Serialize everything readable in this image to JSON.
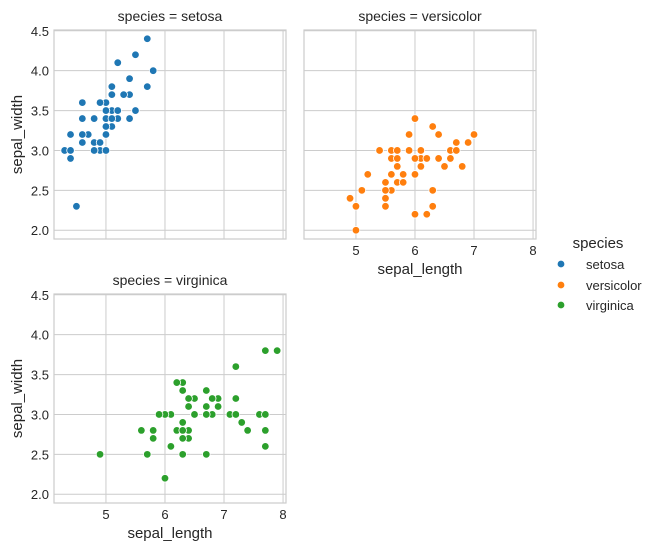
{
  "chart_data": {
    "type": "scatter",
    "xlabel": "sepal_length",
    "ylabel": "sepal_width",
    "xlim": [
      4.12,
      8.05
    ],
    "ylim": [
      1.89,
      4.51
    ],
    "xticks": [
      "5",
      "6",
      "7",
      "8"
    ],
    "yticks": [
      "2.0",
      "2.5",
      "3.0",
      "3.5",
      "4.0",
      "4.5"
    ],
    "legend": {
      "title": "species",
      "placement": "right"
    },
    "grid": true,
    "panels": [
      {
        "title": "species = setosa",
        "name": "setosa",
        "color": "#1f77b4",
        "points": [
          [
            5.1,
            3.5
          ],
          [
            4.9,
            3.0
          ],
          [
            4.7,
            3.2
          ],
          [
            4.6,
            3.1
          ],
          [
            5.0,
            3.6
          ],
          [
            5.4,
            3.9
          ],
          [
            4.6,
            3.4
          ],
          [
            5.0,
            3.4
          ],
          [
            4.4,
            2.9
          ],
          [
            4.9,
            3.1
          ],
          [
            5.4,
            3.7
          ],
          [
            4.8,
            3.4
          ],
          [
            4.8,
            3.0
          ],
          [
            4.3,
            3.0
          ],
          [
            5.8,
            4.0
          ],
          [
            5.7,
            4.4
          ],
          [
            5.4,
            3.9
          ],
          [
            5.1,
            3.5
          ],
          [
            5.7,
            3.8
          ],
          [
            5.1,
            3.8
          ],
          [
            5.4,
            3.4
          ],
          [
            5.1,
            3.7
          ],
          [
            4.6,
            3.6
          ],
          [
            5.1,
            3.3
          ],
          [
            4.8,
            3.4
          ],
          [
            5.0,
            3.0
          ],
          [
            5.0,
            3.4
          ],
          [
            5.2,
            3.5
          ],
          [
            5.2,
            3.4
          ],
          [
            4.7,
            3.2
          ],
          [
            4.8,
            3.1
          ],
          [
            5.4,
            3.4
          ],
          [
            5.2,
            4.1
          ],
          [
            5.5,
            4.2
          ],
          [
            4.9,
            3.1
          ],
          [
            5.0,
            3.2
          ],
          [
            5.5,
            3.5
          ],
          [
            4.9,
            3.6
          ],
          [
            4.4,
            3.0
          ],
          [
            5.1,
            3.4
          ],
          [
            5.0,
            3.5
          ],
          [
            4.5,
            2.3
          ],
          [
            4.4,
            3.2
          ],
          [
            5.0,
            3.5
          ],
          [
            5.1,
            3.8
          ],
          [
            4.8,
            3.0
          ],
          [
            5.1,
            3.8
          ],
          [
            4.6,
            3.2
          ],
          [
            5.3,
            3.7
          ],
          [
            5.0,
            3.3
          ]
        ]
      },
      {
        "title": "species = versicolor",
        "name": "versicolor",
        "color": "#ff7f0e",
        "points": [
          [
            7.0,
            3.2
          ],
          [
            6.4,
            3.2
          ],
          [
            6.9,
            3.1
          ],
          [
            5.5,
            2.3
          ],
          [
            6.5,
            2.8
          ],
          [
            5.7,
            2.8
          ],
          [
            6.3,
            3.3
          ],
          [
            4.9,
            2.4
          ],
          [
            6.6,
            2.9
          ],
          [
            5.2,
            2.7
          ],
          [
            5.0,
            2.0
          ],
          [
            5.9,
            3.0
          ],
          [
            6.0,
            2.2
          ],
          [
            6.1,
            2.9
          ],
          [
            5.6,
            2.9
          ],
          [
            6.7,
            3.1
          ],
          [
            5.6,
            3.0
          ],
          [
            5.8,
            2.7
          ],
          [
            6.2,
            2.2
          ],
          [
            5.6,
            2.5
          ],
          [
            5.9,
            3.2
          ],
          [
            6.1,
            2.8
          ],
          [
            6.3,
            2.5
          ],
          [
            6.1,
            2.8
          ],
          [
            6.4,
            2.9
          ],
          [
            6.6,
            3.0
          ],
          [
            6.8,
            2.8
          ],
          [
            6.7,
            3.0
          ],
          [
            6.0,
            2.9
          ],
          [
            5.7,
            2.6
          ],
          [
            5.5,
            2.4
          ],
          [
            5.5,
            2.4
          ],
          [
            5.8,
            2.7
          ],
          [
            6.0,
            2.7
          ],
          [
            5.4,
            3.0
          ],
          [
            6.0,
            3.4
          ],
          [
            6.7,
            3.1
          ],
          [
            6.3,
            2.3
          ],
          [
            5.6,
            3.0
          ],
          [
            5.5,
            2.5
          ],
          [
            5.5,
            2.6
          ],
          [
            6.1,
            3.0
          ],
          [
            5.8,
            2.6
          ],
          [
            5.0,
            2.3
          ],
          [
            5.6,
            2.7
          ],
          [
            5.7,
            3.0
          ],
          [
            5.7,
            2.9
          ],
          [
            6.2,
            2.9
          ],
          [
            5.1,
            2.5
          ],
          [
            5.7,
            2.8
          ]
        ]
      },
      {
        "title": "species = virginica",
        "name": "virginica",
        "color": "#2ca02c",
        "points": [
          [
            6.3,
            3.3
          ],
          [
            5.8,
            2.7
          ],
          [
            7.1,
            3.0
          ],
          [
            6.3,
            2.9
          ],
          [
            6.5,
            3.0
          ],
          [
            7.6,
            3.0
          ],
          [
            4.9,
            2.5
          ],
          [
            7.3,
            2.9
          ],
          [
            6.7,
            2.5
          ],
          [
            7.2,
            3.6
          ],
          [
            6.5,
            3.2
          ],
          [
            6.4,
            2.7
          ],
          [
            6.8,
            3.0
          ],
          [
            5.7,
            2.5
          ],
          [
            5.8,
            2.8
          ],
          [
            6.4,
            3.2
          ],
          [
            6.5,
            3.0
          ],
          [
            7.7,
            3.8
          ],
          [
            7.7,
            2.6
          ],
          [
            6.0,
            2.2
          ],
          [
            6.9,
            3.2
          ],
          [
            5.6,
            2.8
          ],
          [
            7.7,
            2.8
          ],
          [
            6.3,
            2.7
          ],
          [
            6.7,
            3.3
          ],
          [
            7.2,
            3.2
          ],
          [
            6.2,
            2.8
          ],
          [
            6.1,
            3.0
          ],
          [
            6.4,
            2.8
          ],
          [
            7.2,
            3.0
          ],
          [
            7.4,
            2.8
          ],
          [
            7.9,
            3.8
          ],
          [
            6.4,
            2.8
          ],
          [
            6.3,
            2.8
          ],
          [
            6.1,
            2.6
          ],
          [
            7.7,
            3.0
          ],
          [
            6.3,
            3.4
          ],
          [
            6.4,
            3.1
          ],
          [
            6.0,
            3.0
          ],
          [
            6.9,
            3.1
          ],
          [
            6.7,
            3.1
          ],
          [
            6.9,
            3.1
          ],
          [
            5.8,
            2.7
          ],
          [
            6.8,
            3.2
          ],
          [
            6.7,
            3.3
          ],
          [
            6.7,
            3.0
          ],
          [
            6.3,
            2.5
          ],
          [
            6.5,
            3.0
          ],
          [
            6.2,
            3.4
          ],
          [
            5.9,
            3.0
          ]
        ]
      }
    ]
  }
}
